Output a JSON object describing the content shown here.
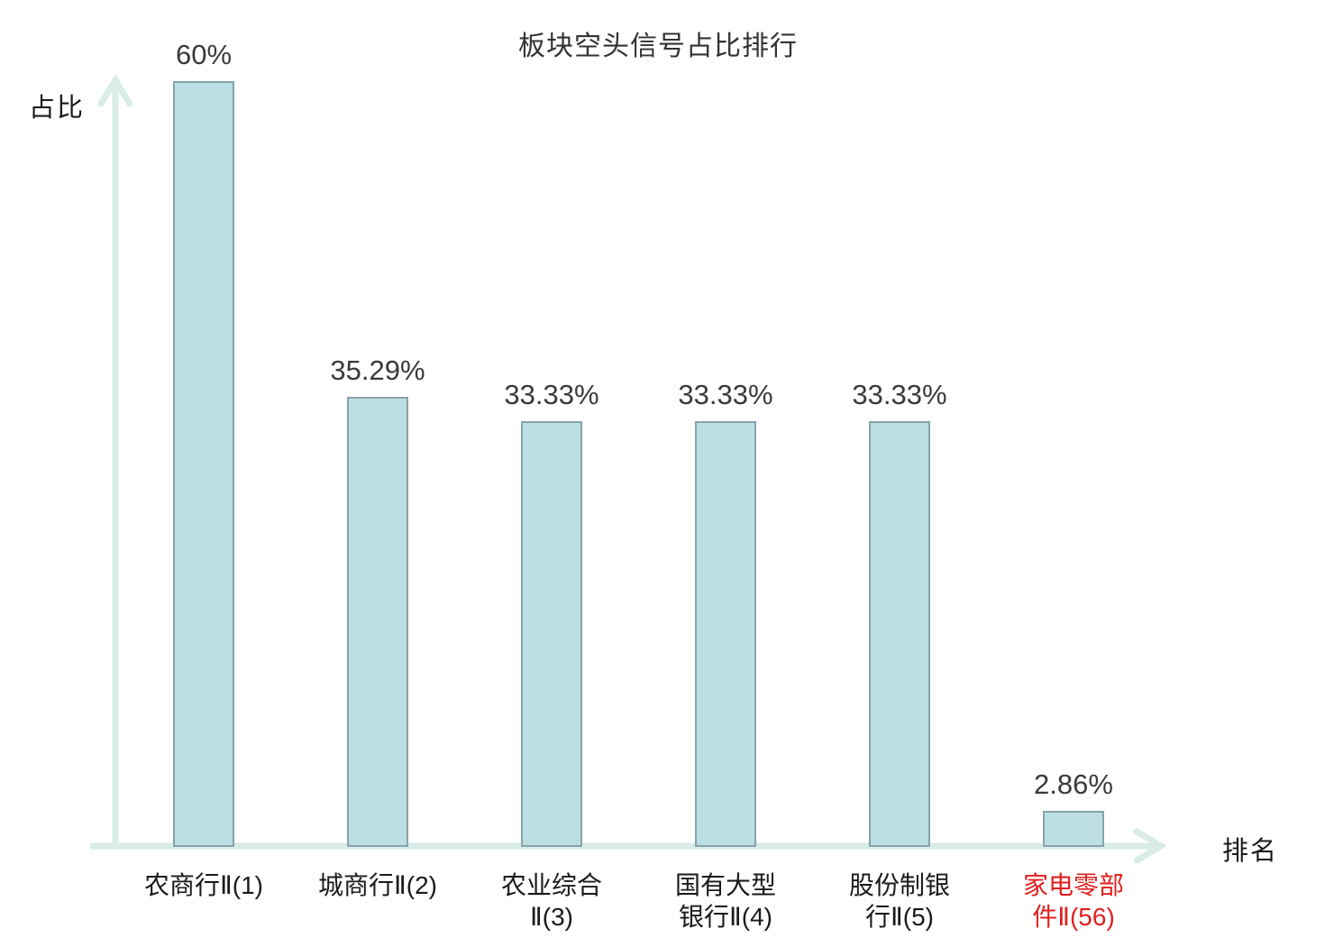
{
  "chart_data": {
    "type": "bar",
    "title": "板块空头信号占比排行",
    "ylabel": "占比",
    "xlabel": "排名",
    "categories": [
      "农商行Ⅱ(1)",
      "城商行Ⅱ(2)",
      "农业综合Ⅱ(3)",
      "国有大型银行Ⅱ(4)",
      "股份制银行Ⅱ(5)",
      "家电零部件Ⅱ(56)"
    ],
    "category_lines": [
      [
        "农商行Ⅱ(1)"
      ],
      [
        "城商行Ⅱ(2)"
      ],
      [
        "农业综合",
        "Ⅱ(3)"
      ],
      [
        "国有大型",
        "银行Ⅱ(4)"
      ],
      [
        "股份制银",
        "行Ⅱ(5)"
      ],
      [
        "家电零部",
        "件Ⅱ(56)"
      ]
    ],
    "values": [
      60,
      35.29,
      33.33,
      33.33,
      33.33,
      2.86
    ],
    "value_labels": [
      "60%",
      "35.29%",
      "33.33%",
      "33.33%",
      "33.33%",
      "2.86%"
    ],
    "ylim": [
      0,
      60
    ],
    "grid": false,
    "legend": false,
    "highlight_index": 5,
    "colors": {
      "bar_fill": "#bcdfe3",
      "bar_border": "#86a3aa",
      "axis": "#d9ece7",
      "title_text": "#333333",
      "value_text": "#3a3a3a",
      "category_text": "#1a1a1a",
      "highlight_text": "#e02020"
    }
  }
}
